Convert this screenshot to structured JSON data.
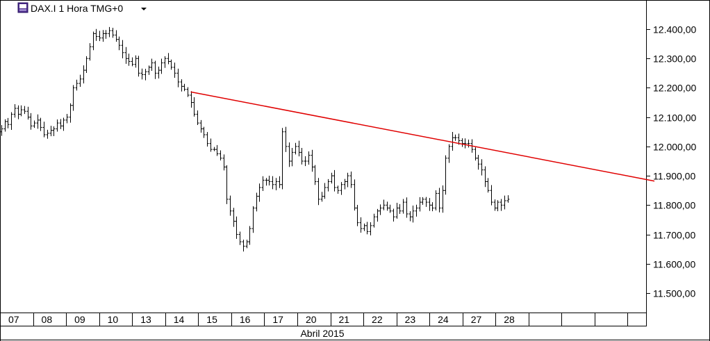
{
  "header": {
    "symbol_label": "DAX.I 1 Hora TMG+0",
    "symbol_icon": "cfd-icon",
    "dropdown_icon": "caret-down-icon"
  },
  "colors": {
    "bars": "#000000",
    "trendline": "#e00000",
    "grid": "#000000",
    "background": "#ffffff"
  },
  "chart_data": {
    "type": "ohlc",
    "title": "DAX.I 1 Hora TMG+0",
    "month_label": "Abril 2015",
    "y_axis": {
      "range": [
        11440,
        12530
      ],
      "ticks": [
        12400,
        12300,
        12200,
        12100,
        12000,
        11900,
        11800,
        11700,
        11600,
        11500
      ],
      "tick_labels": [
        "12.400,00",
        "12.300,00",
        "12.200,00",
        "12.100,00",
        "12.000,00",
        "11.900,00",
        "11.800,00",
        "11.700,00",
        "11.600,00",
        "11.500,00"
      ]
    },
    "x_axis": {
      "dates": [
        "07",
        "08",
        "09",
        "10",
        "13",
        "14",
        "15",
        "16",
        "17",
        "20",
        "21",
        "22",
        "23",
        "24",
        "27",
        "28",
        "",
        "",
        "",
        ""
      ]
    },
    "closes": [
      12060,
      12085,
      12075,
      12110,
      12130,
      12110,
      12125,
      12120,
      12100,
      12070,
      12080,
      12090,
      12065,
      12040,
      12045,
      12055,
      12060,
      12080,
      12070,
      12090,
      12100,
      12140,
      12200,
      12215,
      12230,
      12260,
      12300,
      12340,
      12385,
      12375,
      12370,
      12385,
      12385,
      12395,
      12380,
      12365,
      12345,
      12320,
      12300,
      12290,
      12280,
      12300,
      12250,
      12245,
      12255,
      12270,
      12285,
      12250,
      12260,
      12285,
      12300,
      12290,
      12270,
      12250,
      12220,
      12205,
      12195,
      12175,
      12150,
      12110,
      12080,
      12060,
      12040,
      12010,
      11990,
      11990,
      11975,
      11960,
      11930,
      11820,
      11780,
      11745,
      11700,
      11675,
      11660,
      11675,
      11720,
      11790,
      11830,
      11860,
      11885,
      11885,
      11880,
      11870,
      11880,
      11870,
      12050,
      12000,
      11950,
      11980,
      12000,
      11980,
      11950,
      11950,
      11970,
      11930,
      11880,
      11820,
      11830,
      11860,
      11880,
      11900,
      11860,
      11850,
      11870,
      11880,
      11900,
      11870,
      11790,
      11740,
      11720,
      11730,
      11710,
      11730,
      11760,
      11780,
      11790,
      11800,
      11790,
      11780,
      11760,
      11790,
      11780,
      11810,
      11770,
      11760,
      11780,
      11790,
      11810,
      11820,
      11810,
      11800,
      11790,
      11840,
      11790,
      11850,
      11960,
      12000,
      12030,
      12030,
      12020,
      12010,
      12010,
      12010,
      11990,
      11960,
      11940,
      11920,
      11880,
      11850,
      11810,
      11790,
      11810,
      11800,
      11815,
      11820
    ],
    "trendline": {
      "from_index": 58,
      "from_value": 12186,
      "to_index": 200,
      "to_value": 11882
    }
  }
}
